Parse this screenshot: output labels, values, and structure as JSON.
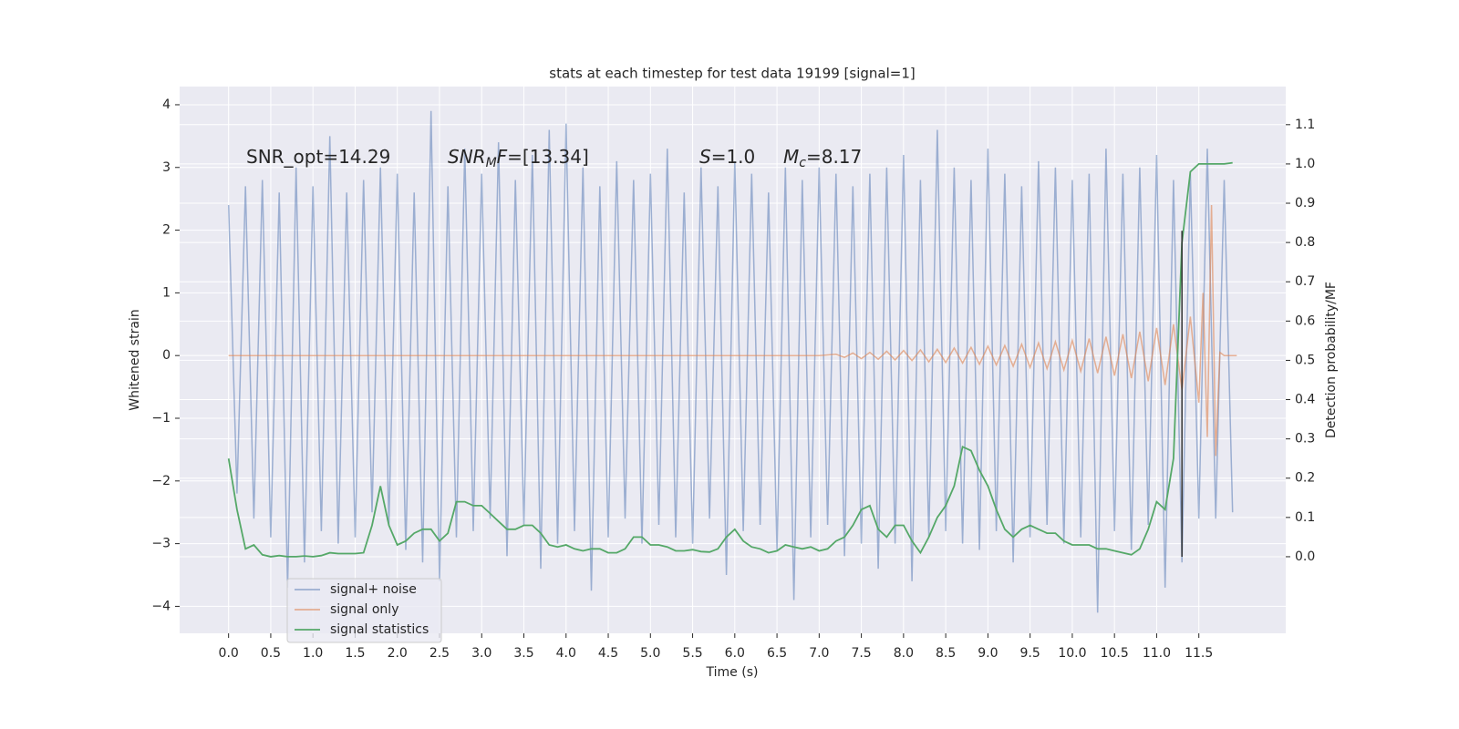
{
  "chart_data": {
    "type": "line",
    "title": "stats at each timestep for test data 19199 [signal=1]",
    "xlabel": "Time (s)",
    "ylabel": "Whitened strain",
    "y2label": "Detection probability/MF",
    "xlim": [
      -0.58,
      12.53
    ],
    "ylim": [
      -4.43,
      4.29
    ],
    "y2lim": [
      -0.195,
      1.197
    ],
    "xticks": [
      {
        "value": 0,
        "label": "0.0"
      },
      {
        "value": 0.5,
        "label": "0.5"
      },
      {
        "value": 1,
        "label": "1.0"
      },
      {
        "value": 1.5,
        "label": "1.5"
      },
      {
        "value": 2,
        "label": "2.0"
      },
      {
        "value": 2.5,
        "label": "2.5"
      },
      {
        "value": 3,
        "label": "3.0"
      },
      {
        "value": 3.5,
        "label": "3.5"
      },
      {
        "value": 4,
        "label": "4.0"
      },
      {
        "value": 4.5,
        "label": "4.5"
      },
      {
        "value": 5,
        "label": "5.0"
      },
      {
        "value": 5.5,
        "label": "5.5"
      },
      {
        "value": 6,
        "label": "6.0"
      },
      {
        "value": 6.5,
        "label": "6.5"
      },
      {
        "value": 7,
        "label": "7.0"
      },
      {
        "value": 7.5,
        "label": "7.5"
      },
      {
        "value": 8,
        "label": "8.0"
      },
      {
        "value": 8.5,
        "label": "8.5"
      },
      {
        "value": 9,
        "label": "9.0"
      },
      {
        "value": 9.5,
        "label": "9.5"
      },
      {
        "value": 10,
        "label": "10.0"
      },
      {
        "value": 10.5,
        "label": "10.5"
      },
      {
        "value": 11,
        "label": "11.0"
      },
      {
        "value": 11.5,
        "label": "11.5"
      }
    ],
    "yticks": [
      {
        "value": -4,
        "label": "−4"
      },
      {
        "value": -3,
        "label": "−3"
      },
      {
        "value": -2,
        "label": "−2"
      },
      {
        "value": -1,
        "label": "−1"
      },
      0,
      1,
      2,
      3,
      4
    ],
    "y2ticks": [
      {
        "value": 0,
        "label": "0.0"
      },
      {
        "value": 0.1,
        "label": "0.1"
      },
      {
        "value": 0.2,
        "label": "0.2"
      },
      {
        "value": 0.3,
        "label": "0.3"
      },
      {
        "value": 0.4,
        "label": "0.4"
      },
      {
        "value": 0.5,
        "label": "0.5"
      },
      {
        "value": 0.6,
        "label": "0.6"
      },
      {
        "value": 0.7,
        "label": "0.7"
      },
      {
        "value": 0.8,
        "label": "0.8"
      },
      {
        "value": 0.9,
        "label": "0.9"
      },
      {
        "value": 1,
        "label": "1.0"
      },
      {
        "value": 1.1,
        "label": "1.1"
      }
    ],
    "grid": true,
    "legend": "lower left",
    "annotations": [
      [
        {
          "t": "SNR_opt=14.29"
        }
      ],
      [
        {
          "t": "SNR",
          "i": true
        },
        {
          "t": "M",
          "i": true,
          "sub": true
        },
        {
          "t": "F",
          "i": true
        },
        {
          "t": "=[13.34]"
        }
      ],
      [
        {
          "t": "S",
          "i": true
        },
        {
          "t": "=1.0"
        }
      ],
      [
        {
          "t": "M",
          "i": true
        },
        {
          "t": "c",
          "i": true,
          "sub": true
        },
        {
          "t": "=8.17"
        }
      ]
    ],
    "marker": {
      "x": 11.3,
      "y2": [
        0,
        0.83
      ],
      "color": "#333333"
    },
    "x": [
      0,
      0.1,
      0.2,
      0.3,
      0.4,
      0.5,
      0.6,
      0.7,
      0.8,
      0.9,
      1,
      1.1,
      1.2,
      1.3,
      1.4,
      1.5,
      1.6,
      1.7,
      1.8,
      1.9,
      2,
      2.1,
      2.2,
      2.3,
      2.4,
      2.5,
      2.6,
      2.7,
      2.8,
      2.9,
      3,
      3.1,
      3.2,
      3.3,
      3.4,
      3.5,
      3.6,
      3.7,
      3.8,
      3.9,
      4,
      4.1,
      4.2,
      4.3,
      4.4,
      4.5,
      4.6,
      4.7,
      4.8,
      4.9,
      5,
      5.1,
      5.2,
      5.3,
      5.4,
      5.5,
      5.6,
      5.7,
      5.8,
      5.9,
      6,
      6.1,
      6.2,
      6.3,
      6.4,
      6.5,
      6.6,
      6.7,
      6.8,
      6.9,
      7,
      7.1,
      7.2,
      7.3,
      7.4,
      7.5,
      7.6,
      7.7,
      7.8,
      7.9,
      8,
      8.1,
      8.2,
      8.3,
      8.4,
      8.5,
      8.6,
      8.7,
      8.8,
      8.9,
      9,
      9.1,
      9.2,
      9.3,
      9.4,
      9.5,
      9.6,
      9.7,
      9.8,
      9.9,
      10,
      10.1,
      10.2,
      10.3,
      10.4,
      10.5,
      10.6,
      10.7,
      10.8,
      10.9,
      11,
      11.1,
      11.2,
      11.3,
      11.4,
      11.5,
      11.6,
      11.7,
      11.8,
      11.9
    ],
    "series": [
      {
        "name": "signal+ noise",
        "color": "#4c72b0",
        "opacity": 0.5,
        "values": [
          2.4,
          -2.2,
          2.7,
          -2.6,
          2.8,
          -2.9,
          2.6,
          -3.7,
          3.0,
          -3.3,
          2.7,
          -2.8,
          3.5,
          -3.0,
          2.6,
          -2.9,
          2.8,
          -2.5,
          3.0,
          -2.7,
          2.9,
          -3.1,
          2.6,
          -3.3,
          3.9,
          -3.6,
          2.7,
          -2.9,
          3.3,
          -2.8,
          2.9,
          -2.6,
          3.4,
          -3.2,
          2.8,
          -2.7,
          3.2,
          -3.4,
          3.6,
          -3.0,
          3.7,
          -2.8,
          3.0,
          -3.75,
          2.7,
          -2.9,
          3.1,
          -2.6,
          2.8,
          -3.0,
          2.9,
          -2.7,
          3.3,
          -2.9,
          2.6,
          -3.0,
          3.0,
          -2.6,
          2.7,
          -3.5,
          3.1,
          -2.8,
          2.9,
          -2.7,
          2.6,
          -3.1,
          3.0,
          -3.9,
          2.8,
          -2.9,
          3.0,
          -2.7,
          2.9,
          -3.2,
          2.7,
          -3.0,
          2.9,
          -3.4,
          3.0,
          -3.0,
          3.2,
          -3.6,
          2.8,
          -2.9,
          3.6,
          -2.8,
          3.0,
          -3.0,
          2.8,
          -3.1,
          3.3,
          -2.8,
          2.9,
          -3.3,
          2.7,
          -2.9,
          3.1,
          -2.7,
          3.0,
          -3.0,
          2.8,
          -2.9,
          2.9,
          -4.1,
          3.3,
          -2.8,
          2.9,
          -3.1,
          3.0,
          -2.7,
          3.2,
          -3.7,
          2.8,
          -3.3,
          2.9,
          -2.6,
          3.3,
          -2.6,
          2.8,
          -2.5
        ]
      },
      {
        "name": "signal only",
        "color": "#dd8452",
        "opacity": 0.6,
        "x": [
          0,
          1,
          2,
          3,
          4,
          5,
          6,
          7,
          7.2,
          7.3,
          7.4,
          7.5,
          7.6,
          7.7,
          7.8,
          7.9,
          8,
          8.1,
          8.2,
          8.3,
          8.4,
          8.5,
          8.6,
          8.7,
          8.8,
          8.9,
          9,
          9.1,
          9.2,
          9.3,
          9.4,
          9.5,
          9.6,
          9.7,
          9.8,
          9.9,
          10,
          10.1,
          10.2,
          10.3,
          10.4,
          10.5,
          10.6,
          10.7,
          10.8,
          10.9,
          11,
          11.1,
          11.2,
          11.3,
          11.4,
          11.5,
          11.55,
          11.6,
          11.65,
          11.7,
          11.75,
          11.8,
          11.95
        ],
        "values": [
          0,
          0,
          0,
          0,
          0,
          0,
          0,
          0,
          0.02,
          -0.03,
          0.04,
          -0.05,
          0.05,
          -0.06,
          0.07,
          -0.07,
          0.08,
          -0.08,
          0.09,
          -0.1,
          0.1,
          -0.11,
          0.12,
          -0.12,
          0.13,
          -0.14,
          0.15,
          -0.15,
          0.16,
          -0.17,
          0.18,
          -0.19,
          0.2,
          -0.21,
          0.22,
          -0.23,
          0.24,
          -0.25,
          0.27,
          -0.28,
          0.3,
          -0.32,
          0.34,
          -0.36,
          0.38,
          -0.41,
          0.44,
          -0.47,
          0.5,
          -0.55,
          0.62,
          -0.75,
          1.0,
          -1.3,
          2.4,
          -1.6,
          0.05,
          0,
          0
        ]
      },
      {
        "name": "signal statistics",
        "color": "#55a868",
        "opacity": 1,
        "axis": "y2",
        "values": [
          0.25,
          0.12,
          0.02,
          0.03,
          0.005,
          0,
          0.003,
          0,
          0,
          0.002,
          0,
          0.003,
          0.01,
          0.008,
          0.008,
          0.008,
          0.01,
          0.08,
          0.18,
          0.08,
          0.03,
          0.04,
          0.06,
          0.07,
          0.07,
          0.04,
          0.06,
          0.14,
          0.14,
          0.13,
          0.13,
          0.11,
          0.09,
          0.07,
          0.07,
          0.08,
          0.08,
          0.06,
          0.03,
          0.025,
          0.03,
          0.02,
          0.015,
          0.02,
          0.02,
          0.01,
          0.01,
          0.02,
          0.05,
          0.05,
          0.03,
          0.03,
          0.025,
          0.015,
          0.015,
          0.018,
          0.013,
          0.012,
          0.02,
          0.05,
          0.07,
          0.04,
          0.025,
          0.02,
          0.01,
          0.015,
          0.03,
          0.025,
          0.02,
          0.025,
          0.015,
          0.02,
          0.04,
          0.05,
          0.08,
          0.12,
          0.13,
          0.07,
          0.05,
          0.08,
          0.08,
          0.04,
          0.01,
          0.05,
          0.1,
          0.13,
          0.18,
          0.28,
          0.27,
          0.22,
          0.18,
          0.12,
          0.07,
          0.05,
          0.07,
          0.08,
          0.07,
          0.06,
          0.06,
          0.04,
          0.03,
          0.03,
          0.03,
          0.02,
          0.02,
          0.015,
          0.01,
          0.005,
          0.02,
          0.07,
          0.14,
          0.12,
          0.25,
          0.8,
          0.98,
          1.0,
          1.0,
          1.0,
          1.0,
          1.003
        ]
      }
    ]
  }
}
